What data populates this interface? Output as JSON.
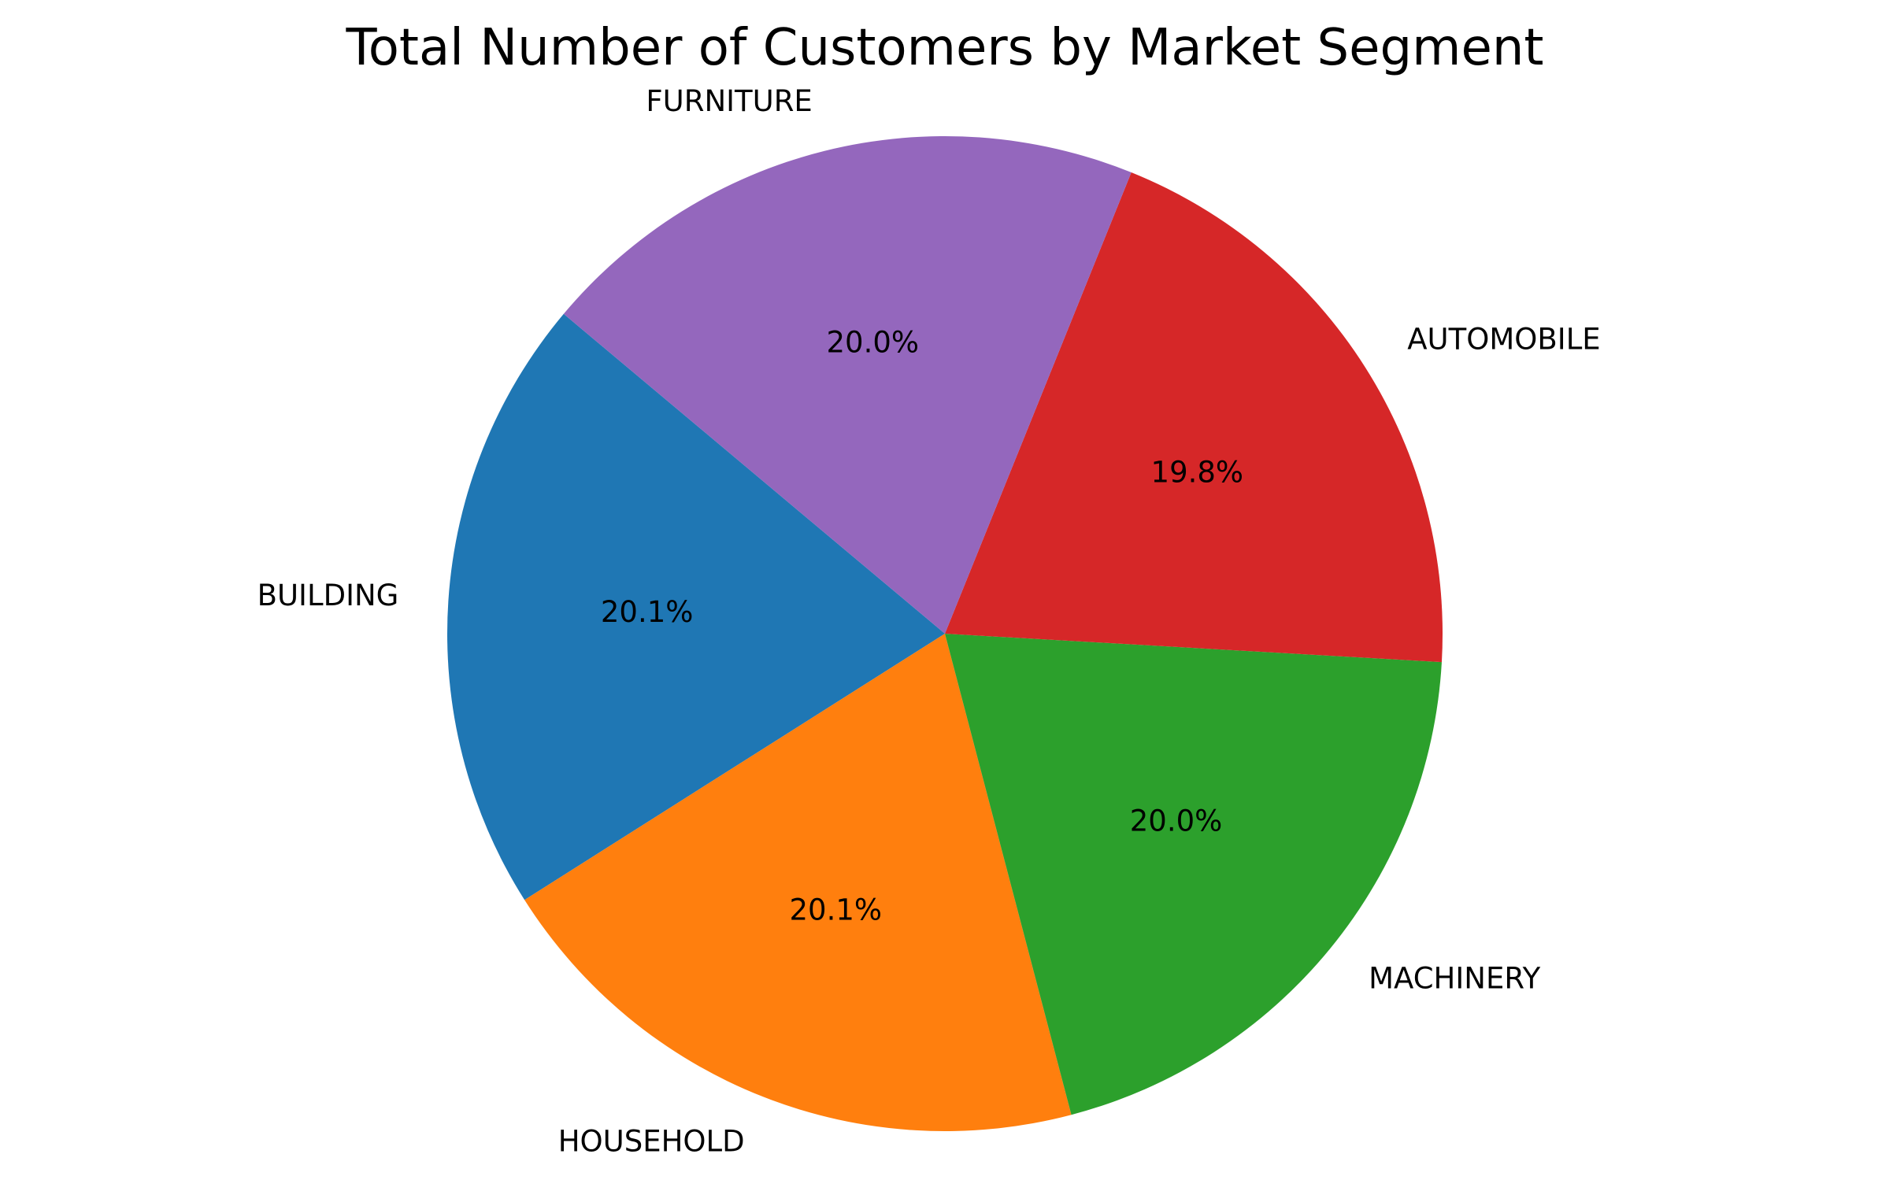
{
  "chart_data": {
    "type": "pie",
    "title": "Total Number of Customers by Market Segment",
    "start_angle_deg": 140,
    "counterclockwise": true,
    "slices": [
      {
        "label": "BUILDING",
        "value": 20.1,
        "pct_label": "20.1%",
        "color": "#1f77b4"
      },
      {
        "label": "HOUSEHOLD",
        "value": 20.1,
        "pct_label": "20.1%",
        "color": "#ff7f0e"
      },
      {
        "label": "MACHINERY",
        "value": 20.0,
        "pct_label": "20.0%",
        "color": "#2ca02c"
      },
      {
        "label": "AUTOMOBILE",
        "value": 19.8,
        "pct_label": "19.8%",
        "color": "#d62728"
      },
      {
        "label": "FURNITURE",
        "value": 20.0,
        "pct_label": "20.0%",
        "color": "#9467bd"
      }
    ]
  }
}
